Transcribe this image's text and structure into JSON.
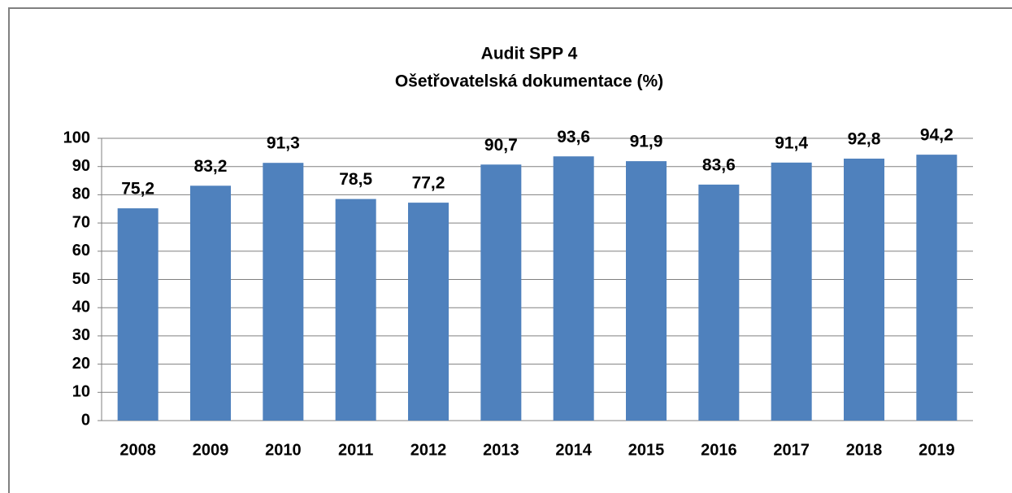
{
  "chart_data": {
    "type": "bar",
    "title": "Audit SPP 4",
    "subtitle": "Ošetřovatelská dokumentace (%)",
    "categories": [
      "2008",
      "2009",
      "2010",
      "2011",
      "2012",
      "2013",
      "2014",
      "2015",
      "2016",
      "2017",
      "2018",
      "2019"
    ],
    "values": [
      75.2,
      83.2,
      91.3,
      78.5,
      77.2,
      90.7,
      93.6,
      91.9,
      83.6,
      91.4,
      92.8,
      94.2
    ],
    "value_labels": [
      "75,2",
      "83,2",
      "91,3",
      "78,5",
      "77,2",
      "90,7",
      "93,6",
      "91,9",
      "83,6",
      "91,4",
      "92,8",
      "94,2"
    ],
    "color": "#4f81bd",
    "ylim": [
      0,
      100
    ],
    "yticks": [
      0,
      10,
      20,
      30,
      40,
      50,
      60,
      70,
      80,
      90,
      100
    ],
    "grid": true
  }
}
